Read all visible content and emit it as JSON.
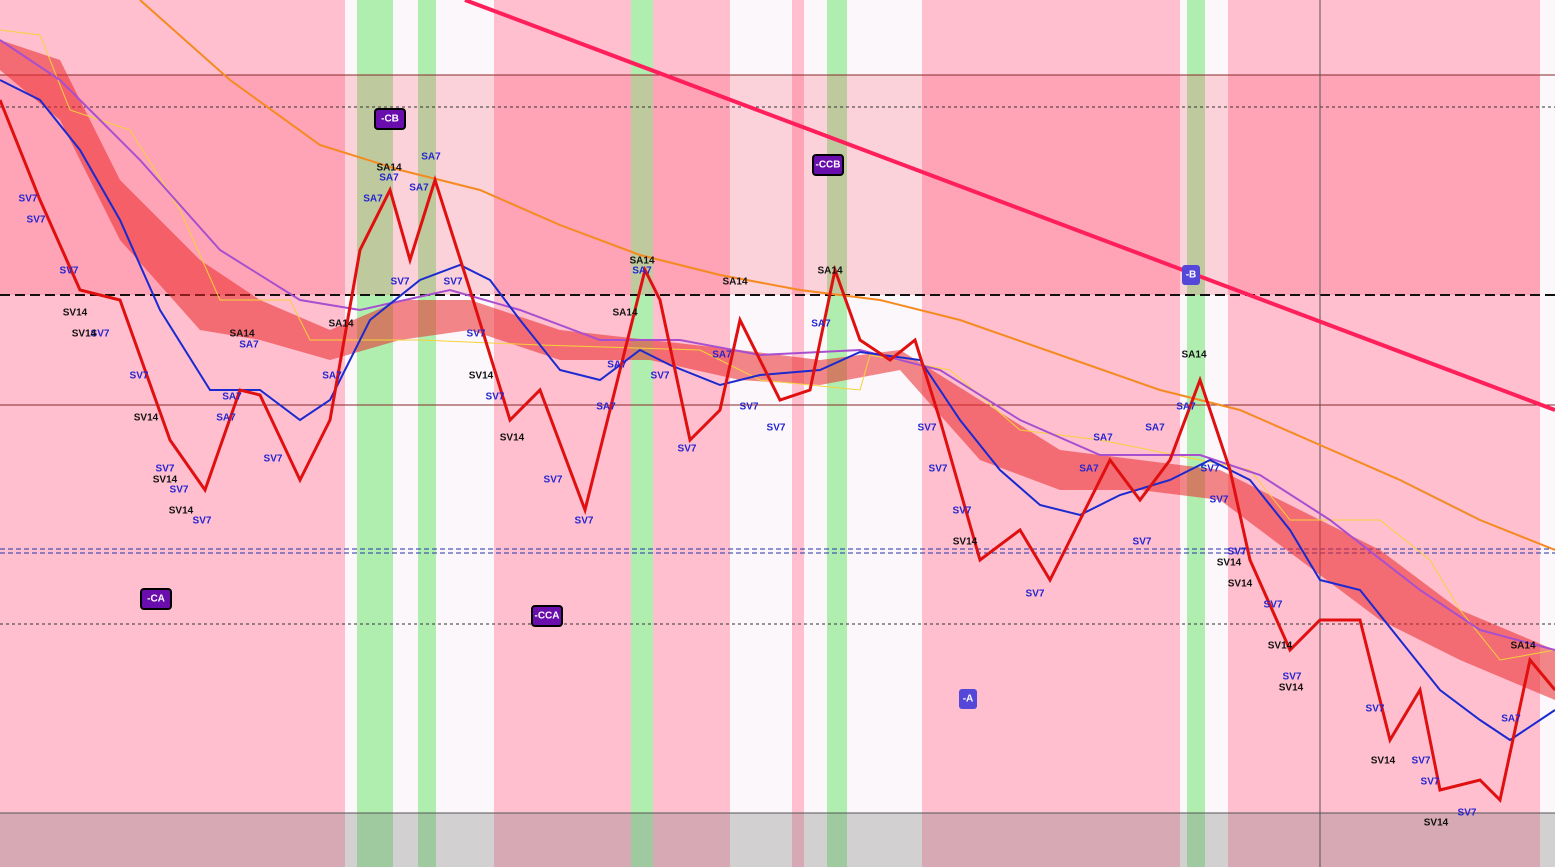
{
  "boxes": [
    "-CB",
    "-CCB",
    "-B",
    "-CA",
    "-CCA",
    "-A"
  ],
  "signals": [
    "SV7",
    "SV7",
    "SV7",
    "SV14",
    "SV7",
    "SV14",
    "SV7",
    "SV14",
    "SV7",
    "SV14",
    "SV7",
    "SV14",
    "SV7",
    "SA7",
    "SA7",
    "SA14",
    "SA7",
    "SV7",
    "SA14",
    "SA7",
    "SA7",
    "SA7",
    "SA14",
    "SA7",
    "SA7",
    "SV7",
    "SV7",
    "SV7",
    "SV14",
    "SV7",
    "SV14",
    "SV7",
    "SV7",
    "SA7",
    "SA7",
    "SA14",
    "SA7",
    "SA14",
    "SV7",
    "SV7",
    "SA14",
    "SA7",
    "SV7",
    "SV7",
    "SA7",
    "SA14",
    "SV7",
    "SV7",
    "SV7",
    "SV14",
    "SV7",
    "SV7",
    "SA7",
    "SA7",
    "SA7",
    "SA7",
    "SA14",
    "SV7",
    "SV7",
    "SV7",
    "SV14",
    "SV14",
    "SV7",
    "SV14",
    "SV7",
    "SV14",
    "SV7",
    "SV14",
    "SV7",
    "SV7",
    "SV14",
    "SV7",
    "SA7",
    "SA14"
  ]
}
